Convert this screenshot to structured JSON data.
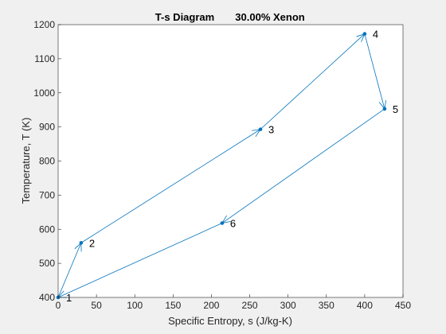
{
  "chart_data": {
    "type": "line",
    "title": "T-s Diagram",
    "subtitle": "30.00% Xenon",
    "xlabel": "Specific Entropy, s (J/kg-K)",
    "ylabel": "Temperature, T (K)",
    "xlim": [
      0,
      450
    ],
    "ylim": [
      400,
      1200
    ],
    "xticks": [
      0,
      50,
      100,
      150,
      200,
      250,
      300,
      350,
      400,
      450
    ],
    "yticks": [
      400,
      500,
      600,
      700,
      800,
      900,
      1000,
      1100,
      1200
    ],
    "grid": false,
    "legend": "none",
    "series": [
      {
        "points": [
          {
            "label": "1",
            "s": 0,
            "T": 400
          },
          {
            "label": "2",
            "s": 30,
            "T": 560
          },
          {
            "label": "3",
            "s": 264,
            "T": 893
          },
          {
            "label": "4",
            "s": 400,
            "T": 1173
          },
          {
            "label": "5",
            "s": 426,
            "T": 953
          },
          {
            "label": "6",
            "s": 214,
            "T": 618
          }
        ],
        "closed": true,
        "color": "#0072BD"
      }
    ],
    "colors": {
      "figure_bg": "#f0f0f0",
      "axes_bg": "#ffffff",
      "axis": "#262626",
      "line": "#0072BD",
      "marker": "#0072BD"
    }
  }
}
